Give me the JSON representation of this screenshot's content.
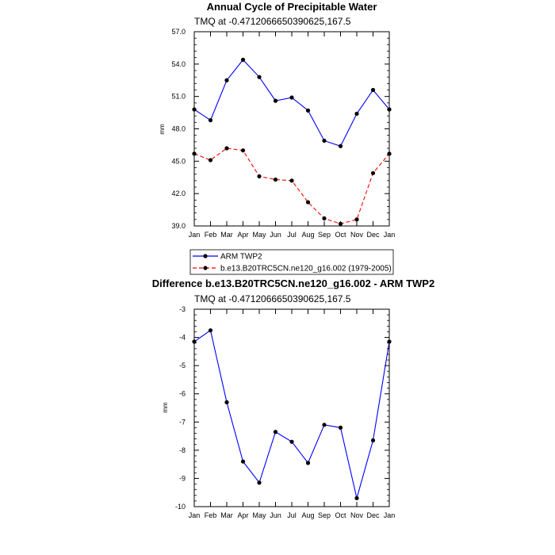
{
  "colors": {
    "obs": "#0000ff",
    "model": "#ff0000",
    "diff": "#0000ff",
    "marker": "#000000",
    "frame": "#000000"
  },
  "chart_data": [
    {
      "type": "line",
      "title": "Annual Cycle of Precipitable Water",
      "subtitle": "TMQ at -0.4712066650390625,167.5",
      "xlabel": "",
      "ylabel": "mm",
      "ylim": [
        39.0,
        57.0
      ],
      "yticks": [
        "39.0",
        "42.0",
        "45.0",
        "48.0",
        "51.0",
        "54.0",
        "57.0"
      ],
      "yticks_values": [
        39,
        42,
        45,
        48,
        51,
        54,
        57
      ],
      "categories": [
        "Jan",
        "Feb",
        "Mar",
        "Apr",
        "May",
        "Jun",
        "Jul",
        "Aug",
        "Sep",
        "Oct",
        "Nov",
        "Dec",
        "Jan"
      ],
      "grid": false,
      "legend": "bottom",
      "series": [
        {
          "name": "ARM TWP2",
          "style": "solid",
          "color": "#0000ff",
          "values": [
            49.8,
            48.8,
            52.5,
            54.4,
            52.8,
            50.6,
            50.9,
            49.7,
            46.9,
            46.4,
            49.4,
            51.6,
            49.8
          ]
        },
        {
          "name": "b.e13.B20TRC5CN.ne120_g16.002 (1979-2005)",
          "style": "dashed",
          "color": "#ff0000",
          "values": [
            45.7,
            45.1,
            46.2,
            46.0,
            43.6,
            43.3,
            43.2,
            41.2,
            39.7,
            39.2,
            39.6,
            43.9,
            45.7
          ]
        }
      ]
    },
    {
      "type": "line",
      "title": "Difference b.e13.B20TRC5CN.ne120_g16.002 - ARM TWP2",
      "subtitle": "TMQ at -0.4712066650390625,167.5",
      "xlabel": "",
      "ylabel": "mm",
      "ylim": [
        -10,
        -3
      ],
      "yticks": [
        "-10",
        "-9",
        "-8",
        "-7",
        "-6",
        "-5",
        "-4",
        "-3"
      ],
      "yticks_values": [
        -10,
        -9,
        -8,
        -7,
        -6,
        -5,
        -4,
        -3
      ],
      "categories": [
        "Jan",
        "Feb",
        "Mar",
        "Apr",
        "May",
        "Jun",
        "Jul",
        "Aug",
        "Sep",
        "Oct",
        "Nov",
        "Dec",
        "Jan"
      ],
      "grid": false,
      "legend": "none",
      "series": [
        {
          "style": "solid",
          "color": "#0000ff",
          "values": [
            -4.15,
            -3.75,
            -6.3,
            -8.4,
            -9.15,
            -7.35,
            -7.7,
            -8.45,
            -7.1,
            -7.2,
            -9.7,
            -7.65,
            -4.15
          ]
        }
      ]
    }
  ]
}
